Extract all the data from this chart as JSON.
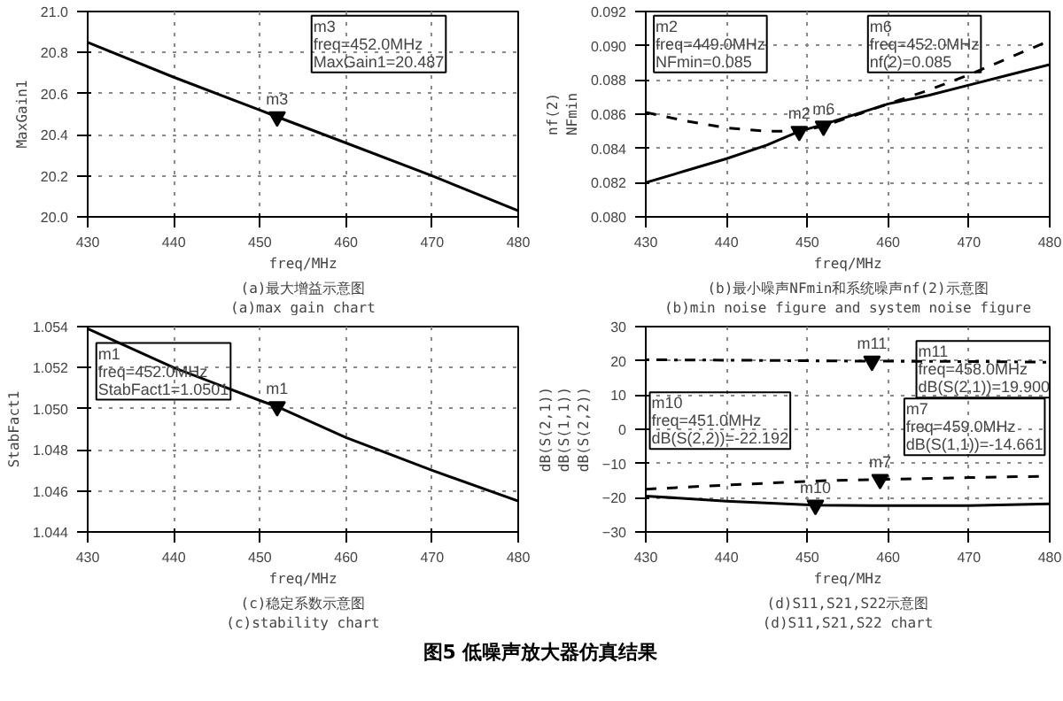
{
  "chart_data": [
    {
      "type": "line",
      "xlabel": "freq/MHz",
      "ylabel": "MaxGain1",
      "x": [
        430,
        440,
        450,
        452,
        460,
        470,
        480
      ],
      "series": [
        {
          "color": "#000000",
          "line_style": "solid",
          "values": [
            20.85,
            20.68,
            20.52,
            20.487,
            20.36,
            20.2,
            20.03
          ]
        },
        {
          "type": "scatter",
          "marker": "triangle",
          "color": "#000000",
          "x": [
            452
          ],
          "values": [
            20.487
          ]
        }
      ],
      "xlim": [
        430,
        480
      ],
      "ylim": [
        20,
        21
      ],
      "xticks": [
        430,
        440,
        450,
        460,
        470,
        480
      ],
      "yticks": [
        {
          "value": 20,
          "label": "20.0"
        },
        20.2,
        20.4,
        20.6,
        20.8,
        {
          "value": 21,
          "label": "21.0"
        }
      ],
      "grid": true,
      "annotations": [
        {
          "text": "m3",
          "x": 452,
          "y": 20.487
        },
        "m3\nfreq=452.0MHz\nMaxGain1=20.487",
        "(a)最大增益示意图",
        "(a)max gain chart"
      ]
    },
    {
      "type": "line",
      "xlabel": "freq/MHz",
      "ylabel": "nf(2)\nNFmin",
      "x": [
        430,
        435,
        440,
        445,
        449,
        452,
        460,
        465,
        470,
        475,
        480
      ],
      "series": [
        {
          "color": "#000000",
          "line_style": "dashed",
          "values": [
            0.0861,
            0.0856,
            0.0852,
            0.085,
            0.085,
            0.0853,
            0.0866,
            0.0874,
            0.0883,
            0.0893,
            0.0903
          ]
        },
        {
          "color": "#000000",
          "line_style": "solid",
          "values": [
            0.082,
            0.0827,
            0.0834,
            0.0842,
            0.085,
            0.0854,
            0.0866,
            0.0871,
            0.0877,
            0.0883,
            0.0889
          ]
        },
        {
          "type": "scatter",
          "marker": "triangle",
          "color": "#000000",
          "x": [
            449,
            452
          ],
          "values": [
            0.085,
            0.0853
          ]
        }
      ],
      "xlim": [
        430,
        480
      ],
      "ylim": [
        0.08,
        0.092
      ],
      "xticks": [
        430,
        440,
        450,
        460,
        470,
        480
      ],
      "yticks": [
        {
          "value": 0.08,
          "label": "0.080"
        },
        0.082,
        0.084,
        0.086,
        0.088,
        {
          "value": 0.09,
          "label": "0.090"
        },
        0.092
      ],
      "grid": true,
      "annotations": [
        {
          "text": "m2",
          "x": 449,
          "y": 0.085
        },
        {
          "text": "m6",
          "x": 452,
          "y": 0.0853
        },
        "m2\nfreq=449.0MHz\nNFmin=0.085",
        "m6\nfreq=452.0MHz\nnf(2)=0.085",
        "(b)最小噪声NFmin和系统噪声nf(2)示意图",
        "(b)min noise figure and system noise figure"
      ]
    },
    {
      "type": "line",
      "xlabel": "freq/MHz",
      "ylabel": "StabFact1",
      "x": [
        430,
        440,
        450,
        452,
        460,
        470,
        480
      ],
      "series": [
        {
          "color": "#000000",
          "line_style": "solid",
          "values": [
            1.0539,
            1.052,
            1.0504,
            1.0501,
            1.0486,
            1.047,
            1.0455
          ]
        },
        {
          "type": "scatter",
          "marker": "triangle",
          "color": "#000000",
          "x": [
            452
          ],
          "values": [
            1.0501
          ]
        }
      ],
      "xlim": [
        430,
        480
      ],
      "ylim": [
        1.044,
        1.054
      ],
      "xticks": [
        430,
        440,
        450,
        460,
        470,
        480
      ],
      "yticks": [
        1.044,
        1.046,
        1.048,
        {
          "value": 1.05,
          "label": "1.050"
        },
        1.052,
        1.054
      ],
      "grid": true,
      "annotations": [
        {
          "text": "m1",
          "x": 452,
          "y": 1.0501
        },
        "m1\nfreq=452.0MHz\nStabFact1=1.0501",
        "(c)稳定系数示意图",
        "(c)stability chart"
      ]
    },
    {
      "type": "line",
      "xlabel": "freq/MHz",
      "ylabel": "dB(S(2,1))\ndB(S(1,1))\ndB(S(2,2))",
      "x": [
        430,
        440,
        451,
        458,
        459,
        470,
        480
      ],
      "series": [
        {
          "color": "#000000",
          "line_style": "dotted",
          "values": [
            20.3,
            20.2,
            20.0,
            19.9,
            19.9,
            19.8,
            19.6
          ]
        },
        {
          "color": "#000000",
          "line_style": "dashed",
          "values": [
            -17.5,
            -16.3,
            -15.1,
            -14.7,
            -14.661,
            -14.1,
            -13.7
          ]
        },
        {
          "color": "#000000",
          "line_style": "solid",
          "values": [
            -19.5,
            -21,
            -22.192,
            -22.3,
            -22.3,
            -22.3,
            -21.8
          ]
        },
        {
          "type": "scatter",
          "marker": "triangle",
          "color": "#000000",
          "x": [
            458,
            451,
            459
          ],
          "values": [
            19.9,
            -22.192,
            -14.661
          ]
        }
      ],
      "xlim": [
        430,
        480
      ],
      "ylim": [
        -30,
        30
      ],
      "xticks": [
        430,
        440,
        450,
        460,
        470,
        480
      ],
      "yticks": [
        -30,
        -20,
        -10,
        0,
        10,
        20,
        30
      ],
      "grid": true,
      "annotations": [
        {
          "text": "m11",
          "x": 458,
          "y": 19.9
        },
        {
          "text": "m10",
          "x": 451,
          "y": -22.192
        },
        {
          "text": "m7",
          "x": 459,
          "y": -14.661
        },
        "m11\nfreq=458.0MHz\ndB(S(2,1))=19.900",
        "m10\nfreq=451.0MHz\ndB(S(2,2))=-22.192",
        "m7\nfreq=459.0MHz\ndB(S(1,1))=-14.661",
        "(d)S11,S21,S22示意图",
        "(d)S11,S21,S22 chart",
        "图5  低噪声放大器仿真结果"
      ]
    }
  ]
}
